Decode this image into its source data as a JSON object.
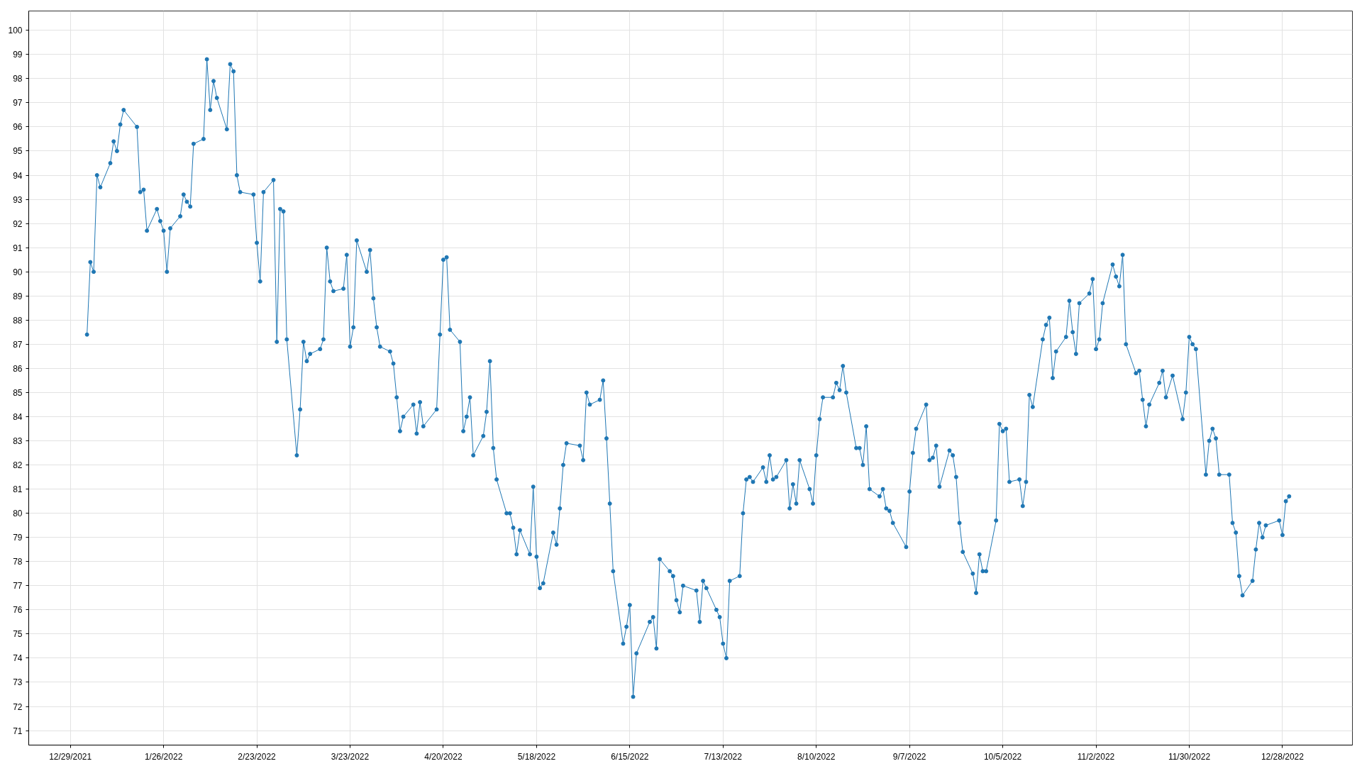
{
  "chart_data": {
    "type": "line",
    "x": [
      "2022-01-03",
      "2022-01-04",
      "2022-01-05",
      "2022-01-06",
      "2022-01-07",
      "2022-01-10",
      "2022-01-11",
      "2022-01-12",
      "2022-01-13",
      "2022-01-14",
      "2022-01-18",
      "2022-01-19",
      "2022-01-20",
      "2022-01-21",
      "2022-01-24",
      "2022-01-25",
      "2022-01-26",
      "2022-01-27",
      "2022-01-28",
      "2022-01-31",
      "2022-02-01",
      "2022-02-02",
      "2022-02-03",
      "2022-02-04",
      "2022-02-07",
      "2022-02-08",
      "2022-02-09",
      "2022-02-10",
      "2022-02-11",
      "2022-02-14",
      "2022-02-15",
      "2022-02-16",
      "2022-02-17",
      "2022-02-18",
      "2022-02-22",
      "2022-02-23",
      "2022-02-24",
      "2022-02-25",
      "2022-02-28",
      "2022-03-01",
      "2022-03-02",
      "2022-03-03",
      "2022-03-04",
      "2022-03-07",
      "2022-03-08",
      "2022-03-09",
      "2022-03-10",
      "2022-03-11",
      "2022-03-14",
      "2022-03-15",
      "2022-03-16",
      "2022-03-17",
      "2022-03-18",
      "2022-03-21",
      "2022-03-22",
      "2022-03-23",
      "2022-03-24",
      "2022-03-25",
      "2022-03-28",
      "2022-03-29",
      "2022-03-30",
      "2022-03-31",
      "2022-04-01",
      "2022-04-04",
      "2022-04-05",
      "2022-04-06",
      "2022-04-07",
      "2022-04-08",
      "2022-04-11",
      "2022-04-12",
      "2022-04-13",
      "2022-04-14",
      "2022-04-18",
      "2022-04-19",
      "2022-04-20",
      "2022-04-21",
      "2022-04-22",
      "2022-04-25",
      "2022-04-26",
      "2022-04-27",
      "2022-04-28",
      "2022-04-29",
      "2022-05-02",
      "2022-05-03",
      "2022-05-04",
      "2022-05-05",
      "2022-05-06",
      "2022-05-09",
      "2022-05-10",
      "2022-05-11",
      "2022-05-12",
      "2022-05-13",
      "2022-05-16",
      "2022-05-17",
      "2022-05-18",
      "2022-05-19",
      "2022-05-20",
      "2022-05-23",
      "2022-05-24",
      "2022-05-25",
      "2022-05-26",
      "2022-05-27",
      "2022-05-31",
      "2022-06-01",
      "2022-06-02",
      "2022-06-03",
      "2022-06-06",
      "2022-06-07",
      "2022-06-08",
      "2022-06-09",
      "2022-06-10",
      "2022-06-13",
      "2022-06-14",
      "2022-06-15",
      "2022-06-16",
      "2022-06-17",
      "2022-06-21",
      "2022-06-22",
      "2022-06-23",
      "2022-06-24",
      "2022-06-27",
      "2022-06-28",
      "2022-06-29",
      "2022-06-30",
      "2022-07-01",
      "2022-07-05",
      "2022-07-06",
      "2022-07-07",
      "2022-07-08",
      "2022-07-11",
      "2022-07-12",
      "2022-07-13",
      "2022-07-14",
      "2022-07-15",
      "2022-07-18",
      "2022-07-19",
      "2022-07-20",
      "2022-07-21",
      "2022-07-22",
      "2022-07-25",
      "2022-07-26",
      "2022-07-27",
      "2022-07-28",
      "2022-07-29",
      "2022-08-01",
      "2022-08-02",
      "2022-08-03",
      "2022-08-04",
      "2022-08-05",
      "2022-08-08",
      "2022-08-09",
      "2022-08-10",
      "2022-08-11",
      "2022-08-12",
      "2022-08-15",
      "2022-08-16",
      "2022-08-17",
      "2022-08-18",
      "2022-08-19",
      "2022-08-22",
      "2022-08-23",
      "2022-08-24",
      "2022-08-25",
      "2022-08-26",
      "2022-08-29",
      "2022-08-30",
      "2022-08-31",
      "2022-09-01",
      "2022-09-02",
      "2022-09-06",
      "2022-09-07",
      "2022-09-08",
      "2022-09-09",
      "2022-09-12",
      "2022-09-13",
      "2022-09-14",
      "2022-09-15",
      "2022-09-16",
      "2022-09-19",
      "2022-09-20",
      "2022-09-21",
      "2022-09-22",
      "2022-09-23",
      "2022-09-26",
      "2022-09-27",
      "2022-09-28",
      "2022-09-29",
      "2022-09-30",
      "2022-10-03",
      "2022-10-04",
      "2022-10-05",
      "2022-10-06",
      "2022-10-07",
      "2022-10-10",
      "2022-10-11",
      "2022-10-12",
      "2022-10-13",
      "2022-10-14",
      "2022-10-17",
      "2022-10-18",
      "2022-10-19",
      "2022-10-20",
      "2022-10-21",
      "2022-10-24",
      "2022-10-25",
      "2022-10-26",
      "2022-10-27",
      "2022-10-28",
      "2022-10-31",
      "2022-11-01",
      "2022-11-02",
      "2022-11-03",
      "2022-11-04",
      "2022-11-07",
      "2022-11-08",
      "2022-11-09",
      "2022-11-10",
      "2022-11-11",
      "2022-11-14",
      "2022-11-15",
      "2022-11-16",
      "2022-11-17",
      "2022-11-18",
      "2022-11-21",
      "2022-11-22",
      "2022-11-23",
      "2022-11-25",
      "2022-11-28",
      "2022-11-29",
      "2022-11-30",
      "2022-12-01",
      "2022-12-02",
      "2022-12-05",
      "2022-12-06",
      "2022-12-07",
      "2022-12-08",
      "2022-12-09",
      "2022-12-12",
      "2022-12-13",
      "2022-12-14",
      "2022-12-15",
      "2022-12-16",
      "2022-12-19",
      "2022-12-20",
      "2022-12-21",
      "2022-12-22",
      "2022-12-23",
      "2022-12-27",
      "2022-12-28",
      "2022-12-29",
      "2022-12-30"
    ],
    "series": [
      {
        "color": "#1f77b4",
        "values": [
          87.4,
          90.4,
          90.0,
          94.0,
          93.5,
          94.5,
          95.4,
          95.0,
          96.1,
          96.7,
          96.0,
          93.3,
          93.4,
          91.7,
          92.6,
          92.1,
          91.7,
          90.0,
          91.8,
          92.3,
          93.2,
          92.9,
          92.7,
          95.3,
          95.5,
          98.8,
          96.7,
          97.9,
          97.2,
          95.9,
          98.6,
          98.3,
          94.0,
          93.3,
          93.2,
          91.2,
          89.6,
          93.3,
          93.8,
          87.1,
          92.6,
          92.5,
          87.2,
          82.4,
          84.3,
          87.1,
          86.3,
          86.6,
          86.8,
          87.2,
          91.0,
          89.6,
          89.2,
          89.3,
          90.7,
          86.9,
          87.7,
          91.3,
          90.0,
          90.9,
          88.9,
          87.7,
          86.9,
          86.7,
          86.2,
          84.8,
          83.4,
          84.0,
          84.5,
          83.3,
          84.6,
          83.6,
          84.3,
          87.4,
          90.5,
          90.6,
          87.6,
          87.1,
          83.4,
          84.0,
          84.8,
          82.4,
          83.2,
          84.2,
          86.3,
          82.7,
          81.4,
          80.0,
          80.0,
          79.4,
          78.3,
          79.3,
          78.3,
          81.1,
          78.2,
          76.9,
          77.1,
          79.2,
          78.7,
          80.2,
          82.0,
          82.9,
          82.8,
          82.2,
          85.0,
          84.5,
          84.7,
          85.5,
          83.1,
          80.4,
          77.6,
          74.6,
          75.3,
          76.2,
          72.4,
          74.2,
          75.5,
          75.7,
          74.4,
          78.1,
          77.6,
          77.4,
          76.4,
          75.9,
          77.0,
          76.8,
          75.5,
          77.2,
          76.9,
          76.0,
          75.7,
          74.6,
          74.0,
          77.2,
          77.4,
          80.0,
          81.4,
          81.5,
          81.3,
          81.9,
          81.3,
          82.4,
          81.4,
          81.5,
          82.2,
          80.2,
          81.2,
          80.4,
          82.2,
          81.0,
          80.4,
          82.4,
          83.9,
          84.8,
          84.8,
          85.4,
          85.1,
          86.1,
          85.0,
          82.7,
          82.7,
          82.0,
          83.6,
          81.0,
          80.7,
          81.0,
          80.2,
          80.1,
          79.6,
          78.6,
          80.9,
          82.5,
          83.5,
          84.5,
          82.2,
          82.3,
          82.8,
          81.1,
          82.6,
          82.4,
          81.5,
          79.6,
          78.4,
          77.5,
          76.7,
          78.3,
          77.6,
          77.6,
          79.7,
          83.7,
          83.4,
          83.5,
          81.3,
          81.4,
          80.3,
          81.3,
          84.9,
          84.4,
          87.2,
          87.8,
          88.1,
          85.6,
          86.7,
          87.3,
          88.8,
          87.5,
          86.6,
          88.7,
          89.1,
          89.7,
          86.8,
          87.2,
          88.7,
          90.3,
          89.8,
          89.4,
          90.7,
          87.0,
          85.8,
          85.9,
          84.7,
          83.6,
          84.5,
          85.4,
          85.9,
          84.8,
          85.7,
          83.9,
          85.0,
          87.3,
          87.0,
          86.8,
          81.6,
          83.0,
          83.5,
          83.1,
          81.6,
          81.6,
          79.6,
          79.2,
          77.4,
          76.6,
          77.2,
          78.5,
          79.6,
          79.0,
          79.5,
          79.7,
          79.1,
          80.5,
          80.7
        ]
      }
    ],
    "xlim": [
      "2021-12-16T12:00",
      "2023-01-18"
    ],
    "xticks": [
      {
        "value": "2021-12-29",
        "label": "12/29/2021"
      },
      {
        "value": "2022-01-26",
        "label": "1/26/2022"
      },
      {
        "value": "2022-02-23",
        "label": "2/23/2022"
      },
      {
        "value": "2022-03-23",
        "label": "3/23/2022"
      },
      {
        "value": "2022-04-20",
        "label": "4/20/2022"
      },
      {
        "value": "2022-05-18",
        "label": "5/18/2022"
      },
      {
        "value": "2022-06-15",
        "label": "6/15/2022"
      },
      {
        "value": "2022-07-13",
        "label": "7/13/2022"
      },
      {
        "value": "2022-08-10",
        "label": "8/10/2022"
      },
      {
        "value": "2022-09-07",
        "label": "9/7/2022"
      },
      {
        "value": "2022-10-05",
        "label": "10/5/2022"
      },
      {
        "value": "2022-11-02",
        "label": "11/2/2022"
      },
      {
        "value": "2022-11-30",
        "label": "11/30/2022"
      },
      {
        "value": "2022-12-28",
        "label": "12/28/2022"
      }
    ],
    "ylim": [
      70.4,
      100.8
    ],
    "yticks": [
      71,
      72,
      73,
      74,
      75,
      76,
      77,
      78,
      79,
      80,
      81,
      82,
      83,
      84,
      85,
      86,
      87,
      88,
      89,
      90,
      91,
      92,
      93,
      94,
      95,
      96,
      97,
      98,
      99,
      100
    ],
    "grid": true,
    "marker": "circle",
    "line_style": "solid"
  }
}
